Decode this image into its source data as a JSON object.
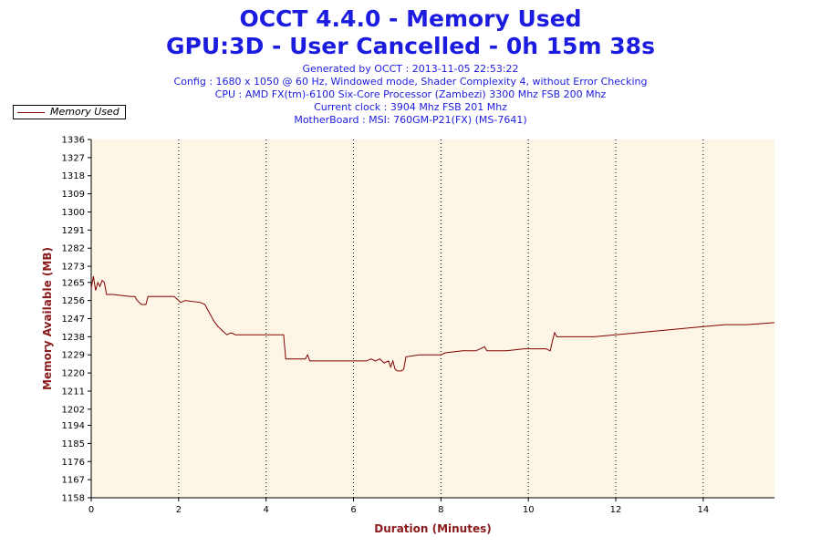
{
  "header": {
    "title_line1": "OCCT 4.4.0 - Memory Used",
    "title_line2": "GPU:3D - User Cancelled - 0h 15m 38s",
    "info": [
      "Generated by OCCT : 2013-11-05 22:53:22",
      "Config : 1680 x 1050 @ 60 Hz, Windowed mode, Shader Complexity 4, without Error Checking",
      "CPU : AMD FX(tm)-6100 Six-Core Processor (Zambezi) 3300 Mhz FSB 200 Mhz",
      "Current clock : 3904 Mhz FSB 201 Mhz",
      "MotherBoard : MSI: 760GM-P21(FX) (MS-7641)"
    ]
  },
  "legend": {
    "label": "Memory Used"
  },
  "colors": {
    "line": "#800000",
    "plot_background": "#fdf5e6",
    "title": "#1c1ce0",
    "axis_title": "#8b1a1a"
  },
  "chart_data": {
    "type": "line",
    "xlabel": "Duration (Minutes)",
    "ylabel": "Memory Available (MB)",
    "xlim": [
      0,
      15.63
    ],
    "ylim": [
      1158,
      1336
    ],
    "x_ticks": [
      "0",
      "2",
      "4",
      "6",
      "8",
      "10",
      "12",
      "14"
    ],
    "x_tick_values": [
      0,
      2,
      4,
      6,
      8,
      10,
      12,
      14
    ],
    "y_ticks": [
      "1158",
      "1167",
      "1176",
      "1185",
      "1194",
      "1202",
      "1211",
      "1220",
      "1229",
      "1238",
      "1247",
      "1256",
      "1265",
      "1273",
      "1282",
      "1291",
      "1300",
      "1309",
      "1318",
      "1327",
      "1336"
    ],
    "y_tick_values": [
      1158,
      1167,
      1176,
      1185,
      1194,
      1202,
      1211,
      1220,
      1229,
      1238,
      1247,
      1256,
      1265,
      1273,
      1282,
      1291,
      1300,
      1309,
      1318,
      1327,
      1336
    ],
    "grid": "vertical dotted",
    "legend_position": "top-left",
    "series": [
      {
        "name": "Memory Used",
        "color": "#800000",
        "points": [
          [
            0.0,
            1262
          ],
          [
            0.05,
            1268
          ],
          [
            0.1,
            1261
          ],
          [
            0.15,
            1265
          ],
          [
            0.2,
            1263
          ],
          [
            0.25,
            1266
          ],
          [
            0.3,
            1265
          ],
          [
            0.35,
            1259
          ],
          [
            0.5,
            1259
          ],
          [
            0.9,
            1258
          ],
          [
            1.0,
            1258
          ],
          [
            1.05,
            1256
          ],
          [
            1.15,
            1254
          ],
          [
            1.25,
            1254
          ],
          [
            1.3,
            1258
          ],
          [
            1.5,
            1258
          ],
          [
            1.9,
            1258
          ],
          [
            2.05,
            1255
          ],
          [
            2.15,
            1256
          ],
          [
            2.5,
            1255
          ],
          [
            2.6,
            1254
          ],
          [
            2.7,
            1250
          ],
          [
            2.8,
            1246
          ],
          [
            2.9,
            1243
          ],
          [
            3.0,
            1241
          ],
          [
            3.1,
            1239
          ],
          [
            3.2,
            1240
          ],
          [
            3.3,
            1239
          ],
          [
            3.5,
            1239
          ],
          [
            4.0,
            1239
          ],
          [
            4.4,
            1239
          ],
          [
            4.45,
            1227
          ],
          [
            4.9,
            1227
          ],
          [
            4.95,
            1229
          ],
          [
            5.0,
            1226
          ],
          [
            5.5,
            1226
          ],
          [
            6.0,
            1226
          ],
          [
            6.3,
            1226
          ],
          [
            6.4,
            1227
          ],
          [
            6.5,
            1226
          ],
          [
            6.6,
            1227
          ],
          [
            6.7,
            1225
          ],
          [
            6.8,
            1226
          ],
          [
            6.85,
            1223
          ],
          [
            6.9,
            1226
          ],
          [
            6.95,
            1222
          ],
          [
            7.0,
            1221
          ],
          [
            7.1,
            1221
          ],
          [
            7.15,
            1222
          ],
          [
            7.2,
            1228
          ],
          [
            7.5,
            1229
          ],
          [
            8.0,
            1229
          ],
          [
            8.1,
            1230
          ],
          [
            8.5,
            1231
          ],
          [
            8.8,
            1231
          ],
          [
            9.0,
            1233
          ],
          [
            9.05,
            1231
          ],
          [
            9.5,
            1231
          ],
          [
            9.9,
            1232
          ],
          [
            10.4,
            1232
          ],
          [
            10.5,
            1231
          ],
          [
            10.55,
            1236
          ],
          [
            10.6,
            1240
          ],
          [
            10.65,
            1238
          ],
          [
            11.0,
            1238
          ],
          [
            11.5,
            1238
          ],
          [
            12.0,
            1239
          ],
          [
            12.5,
            1240
          ],
          [
            13.0,
            1241
          ],
          [
            13.5,
            1242
          ],
          [
            14.0,
            1243
          ],
          [
            14.5,
            1244
          ],
          [
            15.0,
            1244
          ],
          [
            15.63,
            1245
          ]
        ]
      }
    ]
  }
}
